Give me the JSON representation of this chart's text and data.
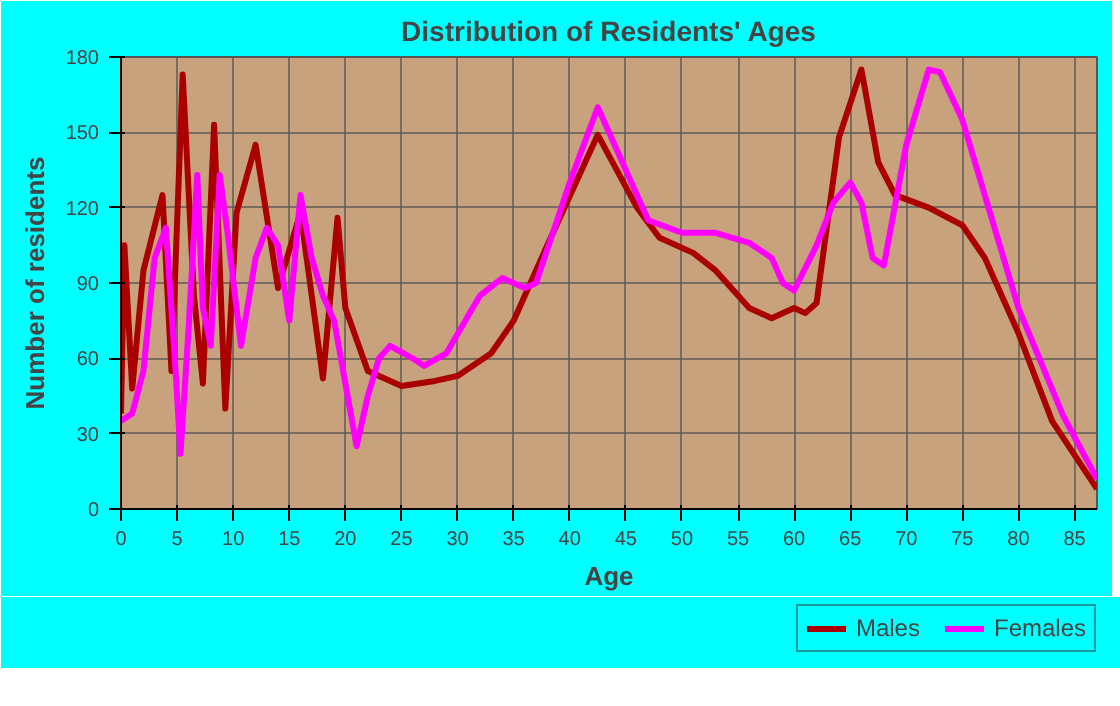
{
  "chart_data": {
    "type": "line",
    "title": "Distribution of Residents' Ages",
    "xlabel": "Age",
    "ylabel": "Number of residents",
    "xlim": [
      0,
      87
    ],
    "xticks": [
      0,
      5,
      10,
      15,
      20,
      25,
      30,
      35,
      40,
      45,
      50,
      55,
      60,
      65,
      70,
      75,
      80,
      85
    ],
    "ylim": [
      0,
      180
    ],
    "yticks": [
      0,
      30,
      60,
      90,
      120,
      150,
      180
    ],
    "grid": true,
    "legend": "bottom right",
    "line_style": "solid",
    "series": [
      {
        "name": "Males",
        "color": "#aa0000",
        "x": [
          0,
          0.3,
          1,
          2,
          3.7,
          4.5,
          5.5,
          6.5,
          7.3,
          8.3,
          9.3,
          10.3,
          12,
          14,
          16,
          18,
          19.3,
          20,
          22,
          25,
          28,
          30,
          33,
          35,
          38,
          42.5,
          46,
          48,
          51,
          53,
          56,
          58,
          60,
          61,
          62,
          64,
          66,
          67.5,
          69,
          72,
          75,
          77,
          80,
          83,
          87
        ],
        "values": [
          38,
          105,
          48,
          95,
          125,
          55,
          173,
          85,
          50,
          153,
          40,
          118,
          145,
          88,
          118,
          52,
          116,
          80,
          55,
          49,
          51,
          53,
          62,
          75,
          105,
          149,
          120,
          108,
          102,
          95,
          80,
          76,
          80,
          78,
          82,
          148,
          175,
          138,
          125,
          120,
          113,
          100,
          70,
          35,
          8
        ]
      },
      {
        "name": "Females",
        "color": "#ff00ff",
        "x": [
          0,
          1,
          2,
          3,
          4,
          4.8,
          5.3,
          6,
          6.8,
          7.3,
          8,
          8.8,
          9.5,
          10.7,
          12,
          13,
          14,
          15,
          16,
          17,
          18,
          19,
          21,
          22,
          23,
          24,
          26,
          27,
          29,
          32,
          34,
          36,
          37,
          40,
          42.5,
          45,
          47,
          50,
          53,
          56,
          58,
          59,
          60,
          62,
          63.5,
          65,
          66,
          67,
          68,
          70,
          72,
          73,
          75,
          78,
          80,
          84,
          87
        ],
        "values": [
          35,
          38,
          55,
          100,
          112,
          60,
          22,
          70,
          133,
          80,
          65,
          133,
          110,
          65,
          100,
          112,
          105,
          75,
          125,
          100,
          85,
          75,
          25,
          45,
          60,
          65,
          60,
          57,
          62,
          85,
          92,
          88,
          90,
          130,
          160,
          135,
          115,
          110,
          110,
          106,
          100,
          90,
          87,
          105,
          122,
          130,
          122,
          100,
          97,
          145,
          175,
          174,
          155,
          110,
          80,
          37,
          12
        ]
      }
    ]
  }
}
